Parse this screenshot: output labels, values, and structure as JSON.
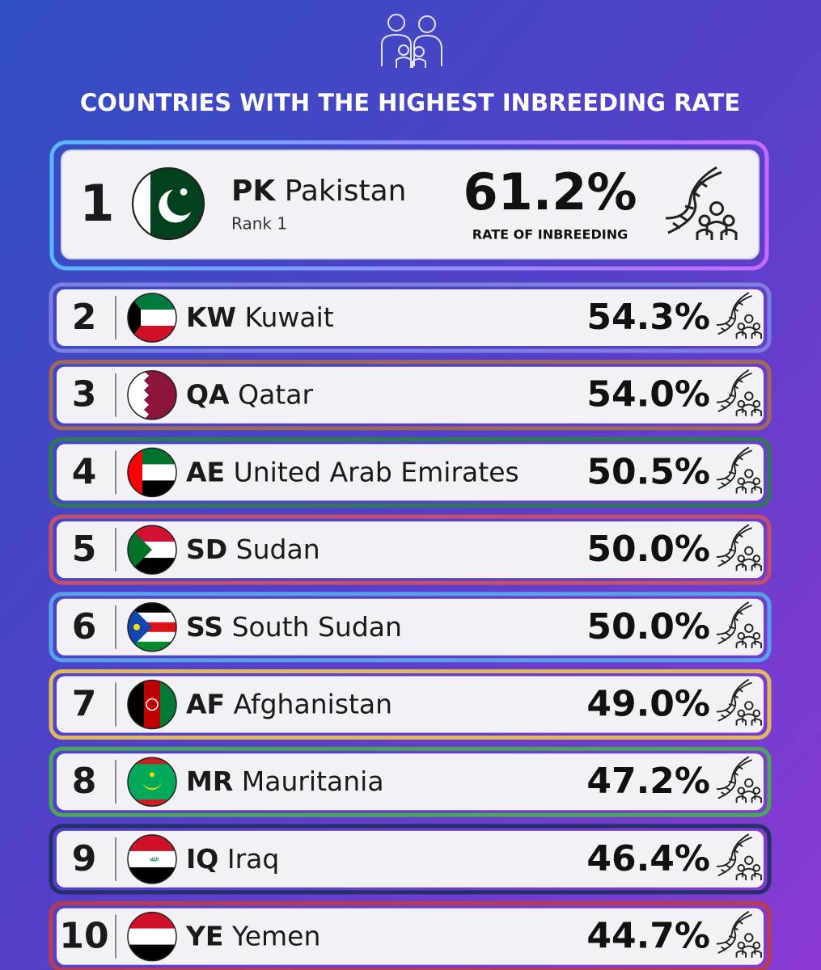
{
  "title": "COUNTRIES WITH THE HIGHEST INBREEDING RATE",
  "leader": {
    "rank": "1",
    "code": "PK",
    "name": "Pakistan",
    "subtitle": "Rank 1",
    "rate": "61.2%",
    "rate_label": "RATE OF INBREEDING"
  },
  "rows": [
    {
      "rank": "2",
      "code": "KW",
      "name": "Kuwait",
      "rate": "54.3%"
    },
    {
      "rank": "3",
      "code": "QA",
      "name": "Qatar",
      "rate": "54.0%"
    },
    {
      "rank": "4",
      "code": "AE",
      "name": "United Arab Emirates",
      "rate": "50.5%"
    },
    {
      "rank": "5",
      "code": "SD",
      "name": "Sudan",
      "rate": "50.0%"
    },
    {
      "rank": "6",
      "code": "SS",
      "name": "South Sudan",
      "rate": "50.0%"
    },
    {
      "rank": "7",
      "code": "AF",
      "name": "Afghanistan",
      "rate": "49.0%"
    },
    {
      "rank": "8",
      "code": "MR",
      "name": "Mauritania",
      "rate": "47.2%"
    },
    {
      "rank": "9",
      "code": "IQ",
      "name": "Iraq",
      "rate": "46.4%"
    },
    {
      "rank": "10",
      "code": "YE",
      "name": "Yemen",
      "rate": "44.7%"
    }
  ]
}
